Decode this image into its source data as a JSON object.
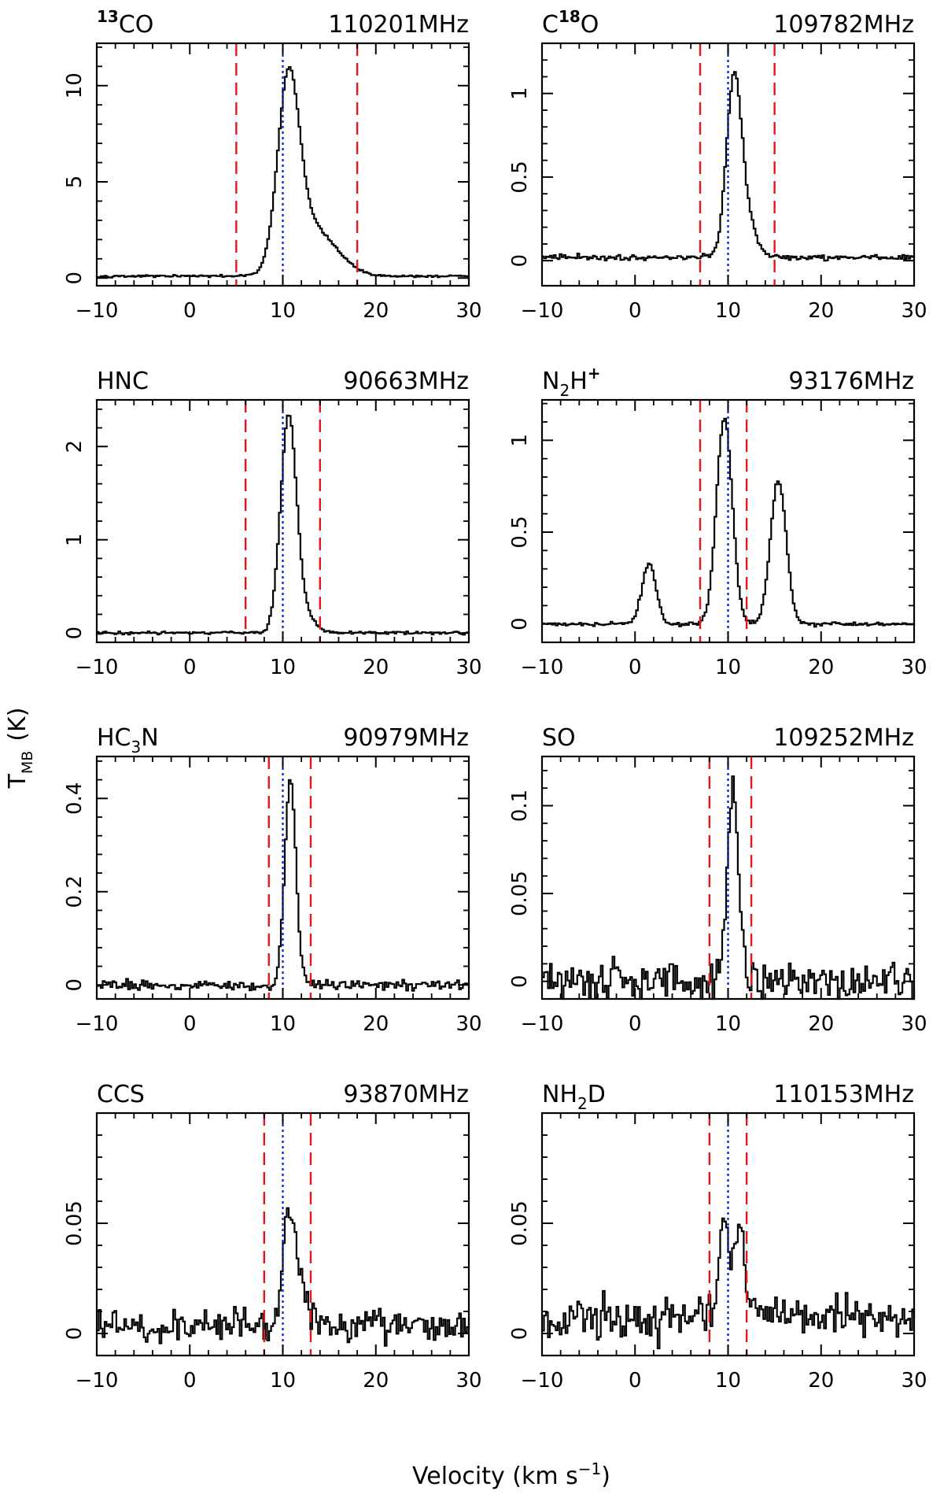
{
  "figure": {
    "ylabel_main": "T",
    "ylabel_sub": "MB",
    "ylabel_unit": "(K)",
    "xlabel_main": "Velocity (km s",
    "xlabel_sup": "−1",
    "xlabel_close": ")"
  },
  "chart_data": [
    {
      "type": "line",
      "title": {
        "parts": [
          {
            "t": "13",
            "s": "sup"
          },
          {
            "t": "CO",
            "s": "n"
          }
        ]
      },
      "frequency": "110201MHz",
      "xlim": [
        -10,
        30
      ],
      "ylim": [
        -0.4,
        12.2
      ],
      "xticks": [
        -10,
        0,
        10,
        20,
        30
      ],
      "xtick_labels": [
        "−10",
        "0",
        "10",
        "20",
        "30"
      ],
      "yticks": [
        0,
        5,
        10
      ],
      "ytick_labels": [
        "0",
        "5",
        "10"
      ],
      "vlsr": 10,
      "window": [
        5,
        18
      ],
      "peaks": [
        {
          "v": 10.5,
          "a": 9.2,
          "w": 1.15
        },
        {
          "v": 12.5,
          "a": 2.4,
          "w": 2.2
        },
        {
          "v": 15.5,
          "a": 0.6,
          "w": 2.0
        }
      ],
      "baseline": 0.1,
      "noise": 0.04
    },
    {
      "type": "line",
      "title": {
        "parts": [
          {
            "t": "C",
            "s": "n"
          },
          {
            "t": "18",
            "s": "sup"
          },
          {
            "t": "O",
            "s": "n"
          }
        ]
      },
      "frequency": "109782MHz",
      "xlim": [
        -10,
        30
      ],
      "ylim": [
        -0.15,
        1.3
      ],
      "xticks": [
        -10,
        0,
        10,
        20,
        30
      ],
      "xtick_labels": [
        "−10",
        "0",
        "10",
        "20",
        "30"
      ],
      "yticks": [
        0,
        0.5,
        1
      ],
      "ytick_labels": [
        "0",
        "0.5",
        "1"
      ],
      "vlsr": 10,
      "window": [
        7,
        15
      ],
      "peaks": [
        {
          "v": 10.5,
          "a": 0.95,
          "w": 0.8
        },
        {
          "v": 11.6,
          "a": 0.25,
          "w": 1.1
        }
      ],
      "baseline": 0.02,
      "noise": 0.012
    },
    {
      "type": "line",
      "title": {
        "parts": [
          {
            "t": "HNC",
            "s": "n"
          }
        ]
      },
      "frequency": "90663MHz",
      "xlim": [
        -10,
        30
      ],
      "ylim": [
        -0.1,
        2.5
      ],
      "xticks": [
        -10,
        0,
        10,
        20,
        30
      ],
      "xtick_labels": [
        "−10",
        "0",
        "10",
        "20",
        "30"
      ],
      "yticks": [
        0,
        1,
        2
      ],
      "ytick_labels": [
        "0",
        "1",
        "2"
      ],
      "vlsr": 10,
      "window": [
        6,
        14
      ],
      "peaks": [
        {
          "v": 10.5,
          "a": 2.15,
          "w": 0.85
        },
        {
          "v": 11.5,
          "a": 0.25,
          "w": 1.4
        }
      ],
      "baseline": 0.0,
      "noise": 0.012
    },
    {
      "type": "line",
      "title": {
        "parts": [
          {
            "t": "N",
            "s": "n"
          },
          {
            "t": "2",
            "s": "sub"
          },
          {
            "t": "H",
            "s": "n"
          },
          {
            "t": "+",
            "s": "sup"
          }
        ]
      },
      "frequency": "93176MHz",
      "xlim": [
        -10,
        30
      ],
      "ylim": [
        -0.1,
        1.22
      ],
      "xticks": [
        -10,
        0,
        10,
        20,
        30
      ],
      "xtick_labels": [
        "−10",
        "0",
        "10",
        "20",
        "30"
      ],
      "yticks": [
        0,
        0.5,
        1
      ],
      "ytick_labels": [
        "0",
        "0.5",
        "1"
      ],
      "vlsr": 10,
      "window": [
        7,
        12
      ],
      "peaks": [
        {
          "v": 1.4,
          "a": 0.33,
          "w": 0.75
        },
        {
          "v": 9.5,
          "a": 1.12,
          "w": 0.85
        },
        {
          "v": 15.3,
          "a": 0.78,
          "w": 0.85
        }
      ],
      "baseline": 0.0,
      "noise": 0.008
    },
    {
      "type": "line",
      "title": {
        "parts": [
          {
            "t": "HC",
            "s": "n"
          },
          {
            "t": "3",
            "s": "sub"
          },
          {
            "t": "N",
            "s": "n"
          }
        ]
      },
      "frequency": "90979MHz",
      "xlim": [
        -10,
        30
      ],
      "ylim": [
        -0.03,
        0.49
      ],
      "xticks": [
        -10,
        0,
        10,
        20,
        30
      ],
      "xtick_labels": [
        "−10",
        "0",
        "10",
        "20",
        "30"
      ],
      "yticks": [
        0,
        0.2,
        0.4
      ],
      "ytick_labels": [
        "0",
        "0.2",
        "0.4"
      ],
      "vlsr": 10,
      "window": [
        8.5,
        13
      ],
      "peaks": [
        {
          "v": 10.7,
          "a": 0.44,
          "w": 0.6
        }
      ],
      "baseline": 0.0,
      "noise": 0.007
    },
    {
      "type": "line",
      "title": {
        "parts": [
          {
            "t": "SO",
            "s": "n"
          }
        ]
      },
      "frequency": "109252MHz",
      "xlim": [
        -10,
        30
      ],
      "ylim": [
        -0.01,
        0.128
      ],
      "xticks": [
        -10,
        0,
        10,
        20,
        30
      ],
      "xtick_labels": [
        "−10",
        "0",
        "10",
        "20",
        "30"
      ],
      "yticks": [
        0,
        0.05,
        0.1
      ],
      "ytick_labels": [
        "0",
        "0.05",
        "0.1"
      ],
      "vlsr": 10,
      "window": [
        8,
        12.5
      ],
      "peaks": [
        {
          "v": 10.4,
          "a": 0.11,
          "w": 0.6
        }
      ],
      "baseline": 0.0,
      "noise": 0.008
    },
    {
      "type": "line",
      "title": {
        "parts": [
          {
            "t": "CCS",
            "s": "n"
          }
        ]
      },
      "frequency": "93870MHz",
      "xlim": [
        -10,
        30
      ],
      "ylim": [
        -0.01,
        0.1
      ],
      "xticks": [
        -10,
        0,
        10,
        20,
        30
      ],
      "xtick_labels": [
        "−10",
        "0",
        "10",
        "20",
        "30"
      ],
      "yticks": [
        0,
        0.05
      ],
      "ytick_labels": [
        "0",
        "0.05"
      ],
      "vlsr": 10,
      "window": [
        8,
        13
      ],
      "peaks": [
        {
          "v": 10.6,
          "a": 0.042,
          "w": 0.7
        },
        {
          "v": 11.6,
          "a": 0.012,
          "w": 1.4
        }
      ],
      "baseline": 0.003,
      "noise": 0.005
    },
    {
      "type": "line",
      "title": {
        "parts": [
          {
            "t": "NH",
            "s": "n"
          },
          {
            "t": "2",
            "s": "sub"
          },
          {
            "t": "D",
            "s": "n"
          }
        ]
      },
      "frequency": "110153MHz",
      "xlim": [
        -10,
        30
      ],
      "ylim": [
        -0.01,
        0.1
      ],
      "xticks": [
        -10,
        0,
        10,
        20,
        30
      ],
      "xtick_labels": [
        "−10",
        "0",
        "10",
        "20",
        "30"
      ],
      "yticks": [
        0,
        0.05
      ],
      "ytick_labels": [
        "0",
        "0.05"
      ],
      "vlsr": 10,
      "window": [
        8,
        12
      ],
      "peaks": [
        {
          "v": 9.4,
          "a": 0.036,
          "w": 0.45
        },
        {
          "v": 11.2,
          "a": 0.038,
          "w": 0.45
        },
        {
          "v": 10.3,
          "a": 0.012,
          "w": 0.9
        }
      ],
      "baseline": 0.008,
      "noise": 0.007
    }
  ],
  "colors": {
    "spectrum": "#000000",
    "window_line": "#e8141c",
    "vlsr_line": "#0a14e0"
  }
}
